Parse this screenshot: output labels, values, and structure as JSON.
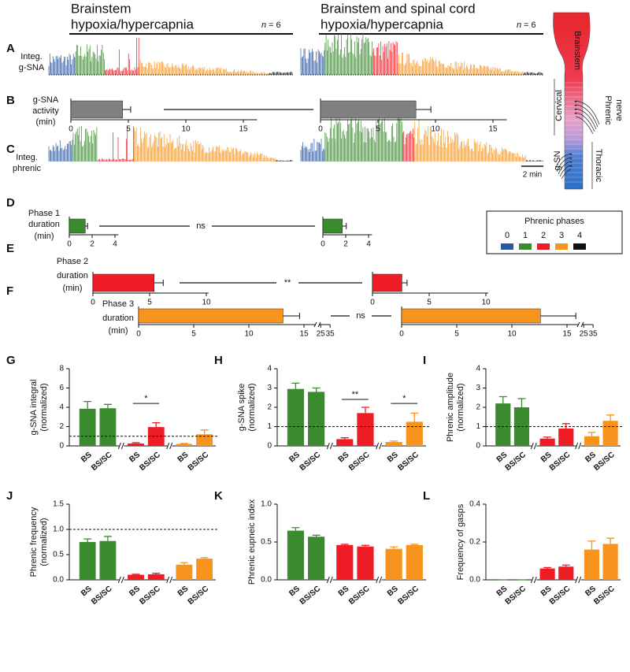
{
  "header": {
    "left": {
      "title": [
        "Brainstem",
        "hypoxia/hypercapnia"
      ],
      "n_symbol": "n",
      "n_value": "= 6"
    },
    "right": {
      "title": [
        "Brainstem and spinal cord",
        "hypoxia/hypercapnia"
      ],
      "n_symbol": "n",
      "n_value": "= 6"
    }
  },
  "panel_letters": [
    "A",
    "B",
    "C",
    "D",
    "E",
    "F",
    "G",
    "H",
    "I",
    "J",
    "K",
    "L"
  ],
  "traces": {
    "a_label": [
      "Integ.",
      "g-SNA"
    ],
    "c_label": [
      "Integ.",
      "phrenic"
    ],
    "scale_bar": "2 min"
  },
  "diagram": {
    "brainstem": "Brainstem",
    "cervical": "Cervical",
    "phrenic_nerve": [
      "Phrenic",
      "nerve"
    ],
    "thoracic": "Thoracic",
    "gsn": "g-SN"
  },
  "phase_legend": {
    "title": "Phrenic phases",
    "phases": [
      {
        "label": "0",
        "color": "#2b58a6"
      },
      {
        "label": "1",
        "color": "#3a8a2e"
      },
      {
        "label": "2",
        "color": "#ee1c24"
      },
      {
        "label": "3",
        "color": "#f7941d"
      },
      {
        "label": "4",
        "color": "#111111"
      }
    ]
  },
  "chart_data": [
    {
      "type": "hbar",
      "label": [
        "g-SNA",
        "activity",
        "(min)"
      ],
      "values": [
        4.5,
        8.3
      ],
      "errors": [
        0.7,
        1.3
      ],
      "color": "#808080",
      "xlim": [
        0,
        16.2
      ],
      "xticks": [
        0,
        5,
        10,
        15
      ]
    },
    {
      "type": "hbar",
      "label": [
        "Phase 1",
        "duration",
        "(min)"
      ],
      "values": [
        1.4,
        1.7
      ],
      "errors": [
        0.2,
        0.35
      ],
      "color": "#3a8a2e",
      "xlim": [
        0,
        4.3
      ],
      "xticks": [
        0,
        2,
        4
      ],
      "significance": "ns"
    },
    {
      "type": "hbar",
      "label": [
        "Phase 2",
        "duration",
        "(min)"
      ],
      "values": [
        5.4,
        2.6
      ],
      "errors": [
        0.8,
        0.45
      ],
      "color": "#ee1c24",
      "xlim": [
        0,
        10.2
      ],
      "xticks": [
        0,
        5,
        10
      ],
      "significance": "**"
    },
    {
      "type": "hbar",
      "label": [
        "Phase 3",
        "duration",
        "(min)"
      ],
      "values": [
        13.1,
        12.6
      ],
      "errors": [
        1.5,
        3.2
      ],
      "color": "#f7941d",
      "xlim": [
        0,
        35
      ],
      "axis_break": [
        16,
        24
      ],
      "xticks": [
        0,
        5,
        10,
        15,
        25,
        35
      ],
      "significance": "ns"
    },
    {
      "type": "grouped",
      "ylabel": [
        "g-SNA integral",
        "(normalized)"
      ],
      "categories": [
        "BS",
        "BS/SC"
      ],
      "ylim": [
        0,
        8
      ],
      "yticks": [
        0,
        2,
        4,
        6,
        8
      ],
      "reference_line": 1,
      "series": [
        {
          "color": "#3a8a2e",
          "values": [
            3.85,
            3.9
          ],
          "errors": [
            0.75,
            0.4
          ]
        },
        {
          "color": "#ee1c24",
          "values": [
            0.25,
            1.95
          ],
          "errors": [
            0.08,
            0.45
          ]
        },
        {
          "color": "#f7941d",
          "values": [
            0.2,
            1.2
          ],
          "errors": [
            0.05,
            0.45
          ]
        }
      ],
      "significance": [
        null,
        "*",
        null
      ]
    },
    {
      "type": "grouped",
      "ylabel": [
        "g-SNA spike",
        "(normalized)"
      ],
      "categories": [
        "BS",
        "BS/SC"
      ],
      "ylim": [
        0,
        4
      ],
      "yticks": [
        0,
        1,
        2,
        3,
        4
      ],
      "reference_line": 1,
      "series": [
        {
          "color": "#3a8a2e",
          "values": [
            2.95,
            2.8
          ],
          "errors": [
            0.3,
            0.2
          ]
        },
        {
          "color": "#ee1c24",
          "values": [
            0.35,
            1.7
          ],
          "errors": [
            0.07,
            0.3
          ]
        },
        {
          "color": "#f7941d",
          "values": [
            0.2,
            1.25
          ],
          "errors": [
            0.05,
            0.45
          ]
        }
      ],
      "significance": [
        null,
        "**",
        "*"
      ]
    },
    {
      "type": "grouped",
      "ylabel": [
        "Phrenic amplitude",
        "(normalized)"
      ],
      "categories": [
        "BS",
        "BS/SC"
      ],
      "ylim": [
        0,
        4
      ],
      "yticks": [
        0,
        1,
        2,
        3,
        4
      ],
      "reference_line": 1,
      "series": [
        {
          "color": "#3a8a2e",
          "values": [
            2.2,
            2.0
          ],
          "errors": [
            0.35,
            0.45
          ]
        },
        {
          "color": "#ee1c24",
          "values": [
            0.38,
            0.9
          ],
          "errors": [
            0.08,
            0.25
          ]
        },
        {
          "color": "#f7941d",
          "values": [
            0.5,
            1.3
          ],
          "errors": [
            0.2,
            0.3
          ]
        }
      ]
    },
    {
      "type": "grouped",
      "ylabel": [
        "Phrenic frequency",
        "(normalized)"
      ],
      "categories": [
        "BS",
        "BS/SC"
      ],
      "ylim": [
        0,
        1.5
      ],
      "yticks": [
        {
          "value": 0,
          "label": "0.0"
        },
        0.5,
        {
          "value": 1,
          "label": "1.0"
        },
        1.5
      ],
      "reference_line": 1,
      "series": [
        {
          "color": "#3a8a2e",
          "values": [
            0.75,
            0.77
          ],
          "errors": [
            0.06,
            0.09
          ]
        },
        {
          "color": "#ee1c24",
          "values": [
            0.1,
            0.11
          ],
          "errors": [
            0.01,
            0.02
          ]
        },
        {
          "color": "#f7941d",
          "values": [
            0.3,
            0.42
          ],
          "errors": [
            0.04,
            0.02
          ]
        }
      ]
    },
    {
      "type": "grouped",
      "ylabel": [
        "Phrenic eupneic index"
      ],
      "categories": [
        "BS",
        "BS/SC"
      ],
      "ylim": [
        0,
        1
      ],
      "yticks": [
        {
          "value": 0,
          "label": "0.0"
        },
        0.5,
        {
          "value": 1,
          "label": "1.0"
        }
      ],
      "series": [
        {
          "color": "#3a8a2e",
          "values": [
            0.65,
            0.57
          ],
          "errors": [
            0.04,
            0.02
          ]
        },
        {
          "color": "#ee1c24",
          "values": [
            0.46,
            0.44
          ],
          "errors": [
            0.01,
            0.015
          ]
        },
        {
          "color": "#f7941d",
          "values": [
            0.41,
            0.46
          ],
          "errors": [
            0.025,
            0.01
          ]
        }
      ]
    },
    {
      "type": "grouped",
      "ylabel": [
        "Frequency of gasps"
      ],
      "categories": [
        "BS",
        "BS/SC"
      ],
      "ylim": [
        0,
        0.4
      ],
      "yticks": [
        {
          "value": 0,
          "label": "0.0"
        },
        0.2,
        0.4
      ],
      "series": [
        {
          "color": "#3a8a2e",
          "values": [
            0,
            0
          ],
          "errors": [
            0,
            0
          ]
        },
        {
          "color": "#ee1c24",
          "values": [
            0.06,
            0.07
          ],
          "errors": [
            0.005,
            0.008
          ]
        },
        {
          "color": "#f7941d",
          "values": [
            0.16,
            0.19
          ],
          "errors": [
            0.045,
            0.03
          ]
        }
      ]
    }
  ]
}
